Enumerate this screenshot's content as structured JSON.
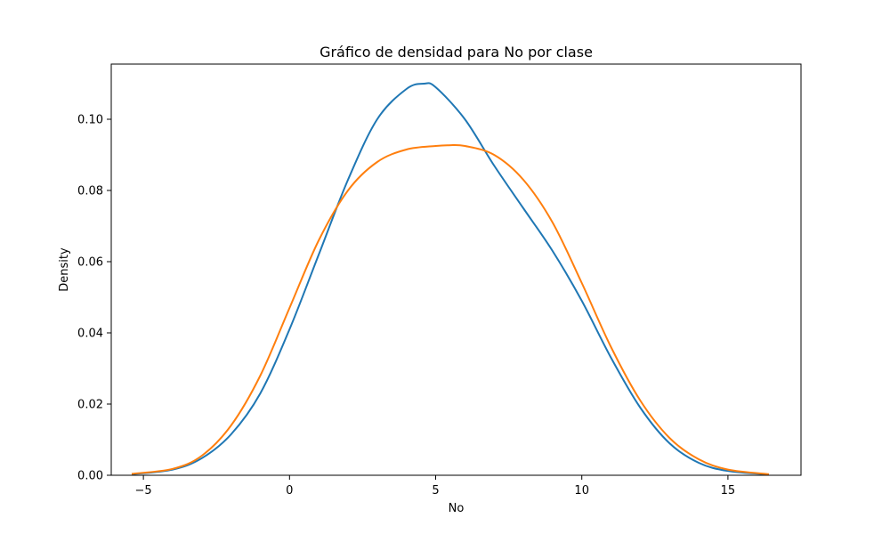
{
  "chart_data": {
    "type": "line",
    "title": "Gráfico de densidad para No por clase",
    "xlabel": "No",
    "ylabel": "Density",
    "xlim": [
      -6.1,
      17.5
    ],
    "ylim": [
      0,
      0.1155
    ],
    "xticks": [
      -5,
      0,
      5,
      10,
      15
    ],
    "xtick_labels": [
      "−5",
      "0",
      "5",
      "10",
      "15"
    ],
    "yticks": [
      0,
      0.02,
      0.04,
      0.06,
      0.08,
      0.1
    ],
    "ytick_labels": [
      "0.00",
      "0.02",
      "0.04",
      "0.06",
      "0.08",
      "0.10"
    ],
    "grid": false,
    "legend": false,
    "series": [
      {
        "color": "#1f77b4",
        "x": [
          -5.4,
          -4,
          -3,
          -2,
          -1,
          0,
          1,
          2,
          3,
          4,
          4.6,
          5,
          6,
          7,
          8,
          9,
          10,
          11,
          12,
          13,
          14,
          15,
          16.4
        ],
        "y": [
          0.0003,
          0.0016,
          0.0048,
          0.0115,
          0.023,
          0.041,
          0.062,
          0.083,
          0.1,
          0.1085,
          0.11,
          0.109,
          0.1,
          0.087,
          0.075,
          0.063,
          0.049,
          0.033,
          0.019,
          0.009,
          0.0035,
          0.0012,
          0.0002
        ]
      },
      {
        "color": "#ff7f0e",
        "x": [
          -5.4,
          -4,
          -3,
          -2,
          -1,
          0,
          1,
          2,
          3,
          4,
          5,
          5.4,
          6,
          7,
          8,
          9,
          10,
          11,
          12,
          13,
          14,
          15,
          16.4
        ],
        "y": [
          0.0004,
          0.0018,
          0.0055,
          0.014,
          0.028,
          0.047,
          0.066,
          0.08,
          0.088,
          0.0915,
          0.0925,
          0.0927,
          0.0925,
          0.09,
          0.083,
          0.071,
          0.054,
          0.036,
          0.021,
          0.0105,
          0.0045,
          0.0016,
          0.0003
        ]
      }
    ]
  }
}
